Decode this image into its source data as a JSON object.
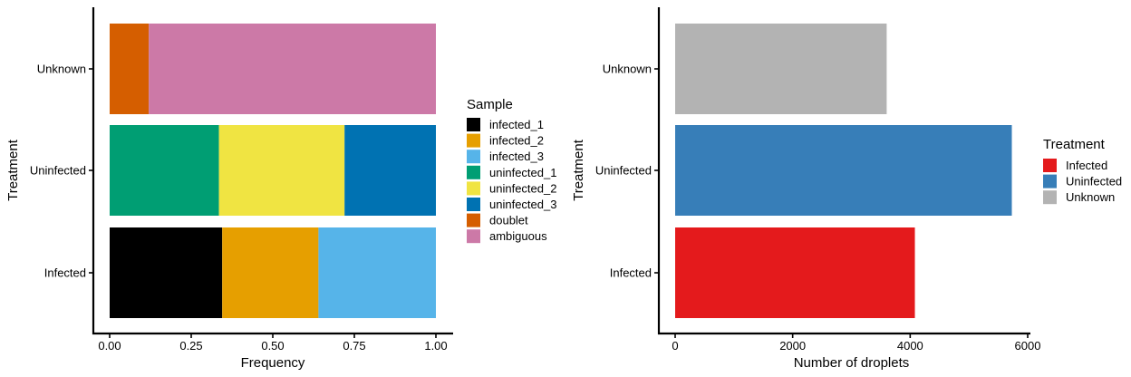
{
  "chart_data": [
    {
      "type": "bar",
      "orientation": "horizontal",
      "stacked": true,
      "categories": [
        "Infected",
        "Uninfected",
        "Unknown"
      ],
      "xlabel": "Frequency",
      "ylabel": "Treatment",
      "xlim": [
        0,
        1
      ],
      "xticks": [
        "0.00",
        "0.25",
        "0.50",
        "0.75",
        "1.00"
      ],
      "grid": false,
      "legend_title": "Sample",
      "legend_position": "right",
      "series": [
        {
          "name": "infected_1",
          "color": "#000000",
          "values": [
            0.345,
            0,
            0
          ]
        },
        {
          "name": "infected_2",
          "color": "#E69F00",
          "values": [
            0.295,
            0,
            0
          ]
        },
        {
          "name": "infected_3",
          "color": "#56B4E9",
          "values": [
            0.36,
            0,
            0
          ]
        },
        {
          "name": "uninfected_1",
          "color": "#009E73",
          "values": [
            0,
            0.335,
            0
          ]
        },
        {
          "name": "uninfected_2",
          "color": "#F0E442",
          "values": [
            0,
            0.385,
            0
          ]
        },
        {
          "name": "uninfected_3",
          "color": "#0072B2",
          "values": [
            0,
            0.28,
            0
          ]
        },
        {
          "name": "doublet",
          "color": "#D55E00",
          "values": [
            0,
            0,
            0.12
          ]
        },
        {
          "name": "ambiguous",
          "color": "#CC79A7",
          "values": [
            0,
            0,
            0.88
          ]
        }
      ]
    },
    {
      "type": "bar",
      "orientation": "horizontal",
      "stacked": false,
      "categories": [
        "Infected",
        "Uninfected",
        "Unknown"
      ],
      "values": [
        4080,
        5730,
        3600
      ],
      "colors": [
        "#E41A1C",
        "#377EB8",
        "#B3B3B3"
      ],
      "xlabel": "Number of droplets",
      "ylabel": "Treatment",
      "xlim": [
        0,
        6000
      ],
      "xticks": [
        "0",
        "2000",
        "4000",
        "6000"
      ],
      "grid": false,
      "legend_title": "Treatment",
      "legend_position": "right",
      "legend": [
        {
          "name": "Infected",
          "color": "#E41A1C"
        },
        {
          "name": "Uninfected",
          "color": "#377EB8"
        },
        {
          "name": "Unknown",
          "color": "#B3B3B3"
        }
      ]
    }
  ]
}
